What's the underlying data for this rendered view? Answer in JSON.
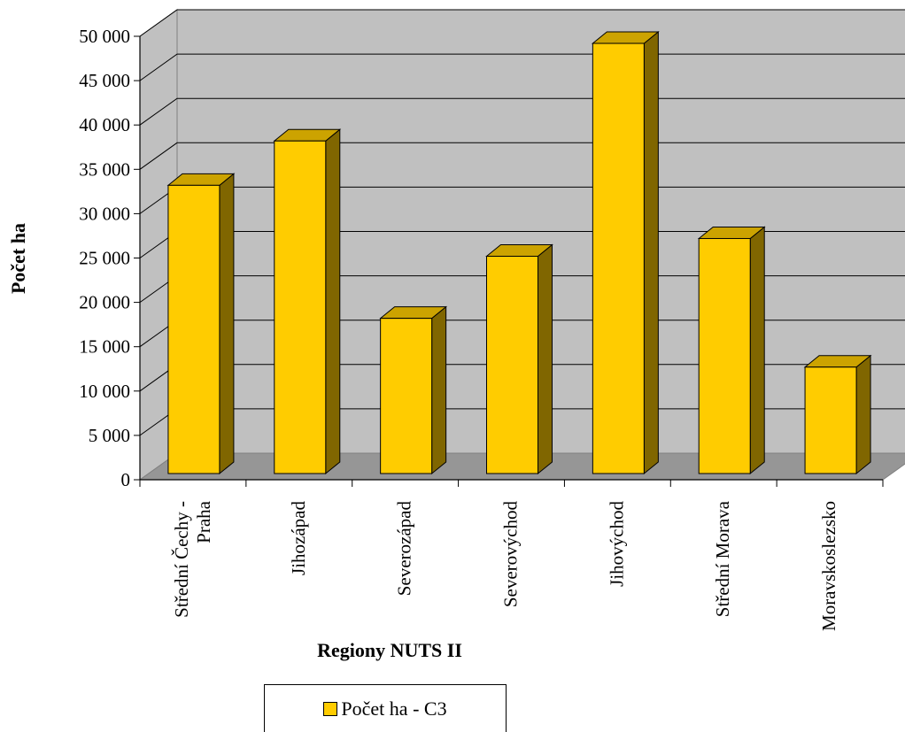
{
  "chart_data": {
    "type": "bar",
    "categories": [
      [
        "Střední Čechy -",
        "Praha"
      ],
      [
        "Jihozápad"
      ],
      [
        "Severozápad"
      ],
      [
        "Severovýchod"
      ],
      [
        "Jihovýchod"
      ],
      [
        "Střední Morava"
      ],
      [
        "Moravskoslezsko"
      ]
    ],
    "series": [
      {
        "name": "Počet ha  - C3",
        "values": [
          32500,
          37500,
          17500,
          24500,
          48500,
          26500,
          12000
        ]
      }
    ],
    "ylim": [
      0,
      50000
    ],
    "yticks": [
      0,
      5000,
      10000,
      15000,
      20000,
      25000,
      30000,
      35000,
      40000,
      45000,
      50000
    ],
    "ytick_labels": [
      "0",
      "5 000",
      "10 000",
      "15 000",
      "20 000",
      "25 000",
      "30 000",
      "35 000",
      "40 000",
      "45 000",
      "50 000"
    ],
    "xlabel": "Regiony NUTS II",
    "ylabel": "Počet ha",
    "title": "",
    "grid": true,
    "legend_position": "bottom",
    "three_d": true,
    "colors": {
      "bar_front": "#FFCC00",
      "bar_top": "#CCA300",
      "bar_side": "#806600",
      "wall": "#C0C0C0",
      "floor": "#969696"
    }
  }
}
